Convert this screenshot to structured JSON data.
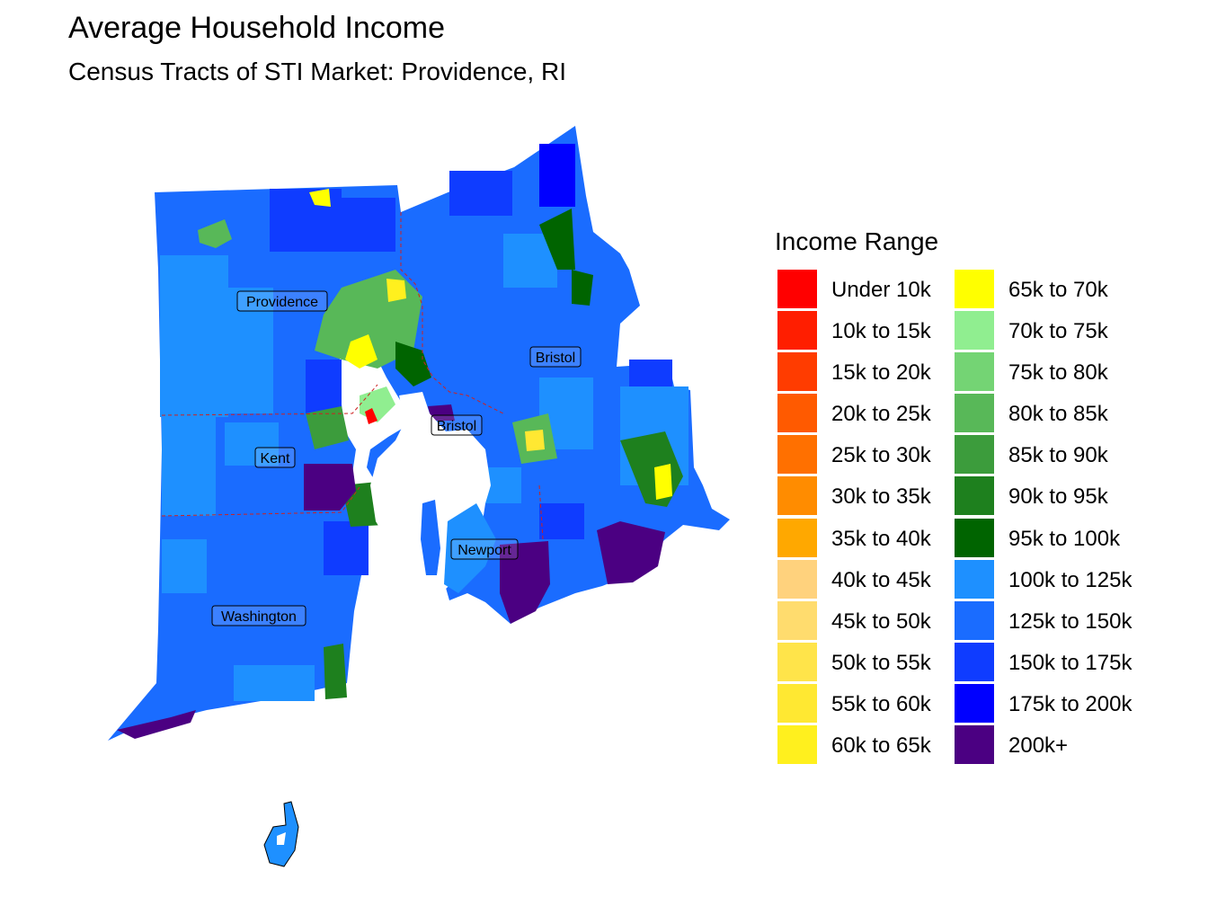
{
  "header": {
    "title": "Average Household Income",
    "subtitle": "Census Tracts of STI Market: Providence, RI"
  },
  "legend": {
    "title": "Income Range",
    "items": [
      {
        "label": "Under 10k",
        "color": "#FF0000"
      },
      {
        "label": "10k to 15k",
        "color": "#FF1E00"
      },
      {
        "label": "15k to 20k",
        "color": "#FF3C00"
      },
      {
        "label": "20k to 25k",
        "color": "#FF5A00"
      },
      {
        "label": "25k to 30k",
        "color": "#FF7000"
      },
      {
        "label": "30k to 35k",
        "color": "#FF8C00"
      },
      {
        "label": "35k to 40k",
        "color": "#FFA800"
      },
      {
        "label": "40k to 45k",
        "color": "#FFD27D"
      },
      {
        "label": "45k to 50k",
        "color": "#FFDC6E"
      },
      {
        "label": "50k to 55k",
        "color": "#FFE44A"
      },
      {
        "label": "55k to 60k",
        "color": "#FFE832"
      },
      {
        "label": "60k to 65k",
        "color": "#FFF01E"
      },
      {
        "label": "65k to 70k",
        "color": "#FFFF00"
      },
      {
        "label": "70k to 75k",
        "color": "#90EE90"
      },
      {
        "label": "75k to 80k",
        "color": "#74D474"
      },
      {
        "label": "80k to 85k",
        "color": "#58B858"
      },
      {
        "label": "85k to 90k",
        "color": "#3C9C3C"
      },
      {
        "label": "90k to 95k",
        "color": "#1E801E"
      },
      {
        "label": "95k to 100k",
        "color": "#006400"
      },
      {
        "label": "100k to 125k",
        "color": "#1E90FF"
      },
      {
        "label": "125k to 150k",
        "color": "#1A6CFF"
      },
      {
        "label": "150k to 175k",
        "color": "#0F3CFF"
      },
      {
        "label": "175k to 200k",
        "color": "#0000FF"
      },
      {
        "label": "200k+",
        "color": "#4B0082"
      }
    ]
  },
  "counties": {
    "providence": "Providence",
    "bristol_north": "Bristol",
    "bristol_center": "Bristol",
    "kent": "Kent",
    "newport": "Newport",
    "washington": "Washington"
  }
}
